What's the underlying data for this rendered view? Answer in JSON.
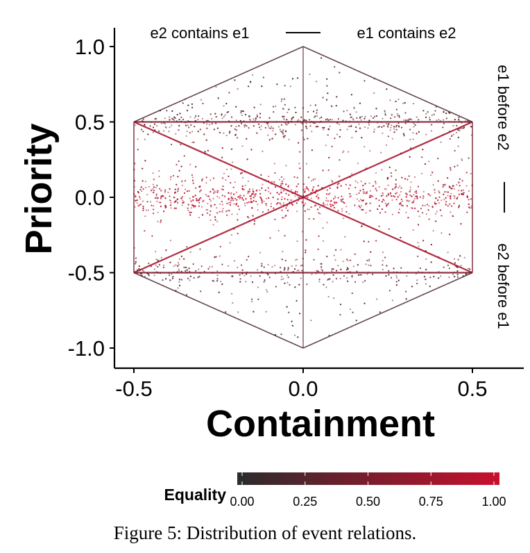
{
  "chart_data": {
    "type": "scatter",
    "xlabel": "Containment",
    "ylabel": "Priority",
    "xlim": [
      -0.5,
      0.5
    ],
    "ylim": [
      -1.0,
      1.0
    ],
    "x_ticks": [
      "-0.5",
      "0.0",
      "0.5"
    ],
    "y_ticks": [
      "1.0",
      "0.5",
      "0.0",
      "-0.5",
      "-1.0"
    ],
    "top_annotation": {
      "left": "e2 contains e1",
      "right": "e1 contains e2"
    },
    "right_annotation": {
      "top": "e1 before e2",
      "bottom": "e2 before e1"
    },
    "color_scale": {
      "name": "Equality",
      "low_color": "#2b2b2b",
      "high_color": "#c8102e",
      "ticks": [
        "0.00",
        "0.25",
        "0.50",
        "0.75",
        "1.00"
      ],
      "placement": "bottom"
    },
    "series": [
      {
        "region": "hexagon-interior",
        "x_range": [
          -0.5,
          0.5
        ],
        "y_range": [
          -1.0,
          1.0
        ],
        "vertices": [
          [
            0.0,
            1.0
          ],
          [
            0.5,
            0.5
          ],
          [
            0.5,
            -0.5
          ],
          [
            0.0,
            -1.0
          ],
          [
            -0.5,
            -0.5
          ],
          [
            -0.5,
            0.5
          ]
        ]
      },
      {
        "region": "diagonal",
        "from": [
          -0.5,
          0.5
        ],
        "to": [
          0.5,
          -0.5
        ]
      },
      {
        "region": "diagonal",
        "from": [
          -0.5,
          -0.5
        ],
        "to": [
          0.5,
          0.5
        ]
      },
      {
        "region": "horizontal-line",
        "y": 0.5,
        "x_range": [
          -0.5,
          0.5
        ]
      },
      {
        "region": "horizontal-line",
        "y": -0.5,
        "x_range": [
          -0.5,
          0.5
        ]
      },
      {
        "region": "vertical-line",
        "x": 0.0,
        "y_range": [
          -1.0,
          1.0
        ]
      }
    ],
    "grid": false
  },
  "caption": "Figure 5: Distribution of event relations."
}
